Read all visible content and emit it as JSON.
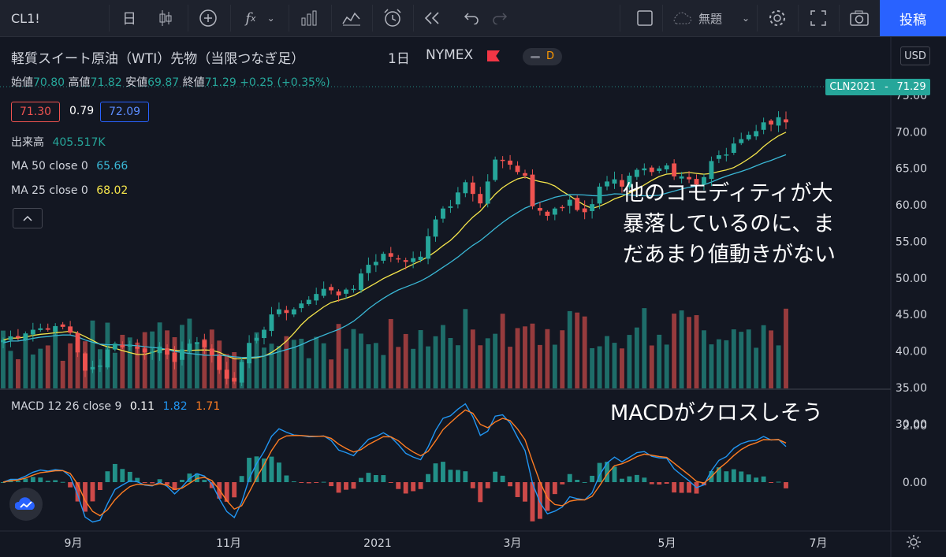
{
  "toolbar": {
    "symbol": "CL1!",
    "interval_glyph": "日",
    "title_field": "無題",
    "post_label": "投稿"
  },
  "header": {
    "instrument": "軽質スイート原油（WTI）先物（当限つなぎ足）",
    "interval": "1日",
    "exchange": "NYMEX",
    "badge": "D",
    "currency": "USD"
  },
  "ohlc": {
    "open_label": "始値",
    "open": "70.80",
    "high_label": "高値",
    "high": "71.82",
    "low_label": "安値",
    "low": "69.87",
    "close_label": "終値",
    "close": "71.29",
    "change": "+0.25 (+0.35%)"
  },
  "quote": {
    "bid": "71.30",
    "spread": "0.79",
    "ask": "72.09"
  },
  "volume_legend": {
    "label": "出来高",
    "value": "405.517K"
  },
  "ma50_legend": {
    "label": "MA 50 close 0",
    "value": "65.66"
  },
  "ma25_legend": {
    "label": "MA 25 close 0",
    "value": "68.02"
  },
  "macd_legend": {
    "label": "MACD 12 26 close 9",
    "hist": "0.11",
    "macd": "1.82",
    "signal": "1.71"
  },
  "last_price_tag": {
    "symbol": "CLN2021",
    "value": "71.29"
  },
  "annotations": {
    "price_note": "他のコモディティが大\n暴落しているのに、ま\nだあまり値動きがない",
    "macd_note": "MACDがクロスしそう"
  },
  "colors": {
    "up": "#26a69a",
    "down": "#ef5350",
    "ma25": "#f5e54b",
    "ma50": "#3ab8d6",
    "macd": "#2196f3",
    "signal": "#ff7d22",
    "post": "#2962ff"
  },
  "chart_data": [
    {
      "type": "line",
      "title": "",
      "xlabel": "",
      "ylabel": "",
      "y_axis_ticks": [
        "75.00",
        "70.00",
        "65.00",
        "60.00",
        "55.00",
        "50.00",
        "45.00",
        "40.00",
        "35.00",
        "30.00"
      ],
      "x_axis_ticks": [
        "9月",
        "11月",
        "2021",
        "3月",
        "5月",
        "7月"
      ],
      "ylim": [
        30,
        75
      ],
      "grid": false,
      "series": [
        {
          "name": "Close",
          "values": [
            41.5,
            42.0,
            41.8,
            42.4,
            42.9,
            43.1,
            42.9,
            43.4,
            43.3,
            42.5,
            39.8,
            37.3,
            37.8,
            38.0,
            40.2,
            41.0,
            40.5,
            40.8,
            40.3,
            39.8,
            39.9,
            40.6,
            39.5,
            38.5,
            40.2,
            41.0,
            41.2,
            40.5,
            39.4,
            37.4,
            36.2,
            35.8,
            38.5,
            41.1,
            41.8,
            42.9,
            45.0,
            45.7,
            45.2,
            45.7,
            46.5,
            47.0,
            47.8,
            48.5,
            48.3,
            47.6,
            48.4,
            48.5,
            50.6,
            51.8,
            52.2,
            53.3,
            52.9,
            52.6,
            52.2,
            52.7,
            52.9,
            55.7,
            58.0,
            59.5,
            59.8,
            61.7,
            63.1,
            61.5,
            60.2,
            63.2,
            66.2,
            66.1,
            65.5,
            64.5,
            64.0,
            59.8,
            59.2,
            58.5,
            59.5,
            59.6,
            60.7,
            59.3,
            59.0,
            60.1,
            62.5,
            63.2,
            63.5,
            62.5,
            64.0,
            64.8,
            65.0,
            64.5,
            65.0,
            65.4,
            63.9,
            63.9,
            63.5,
            62.8,
            63.8,
            66.0,
            66.8,
            66.9,
            68.4,
            69.0,
            69.6,
            70.1,
            71.3,
            71.0,
            72.0,
            71.3
          ],
          "x_range": [
            "2020-07-27",
            "2021-06-15"
          ]
        },
        {
          "name": "MA 25 close 0",
          "last": 68.02
        },
        {
          "name": "MA 50 close 0",
          "last": 65.66
        }
      ]
    },
    {
      "type": "bar",
      "title": "",
      "series": [
        {
          "name": "出来高",
          "last": "405.517K"
        }
      ]
    },
    {
      "type": "line",
      "title": "",
      "y_axis_ticks": [
        "2.00",
        "0.00"
      ],
      "ylim": [
        -1.0,
        2.8
      ],
      "series": [
        {
          "name": "MACD",
          "last": 1.82
        },
        {
          "name": "Signal",
          "last": 1.71
        },
        {
          "name": "Histogram",
          "last": 0.11
        }
      ]
    }
  ]
}
